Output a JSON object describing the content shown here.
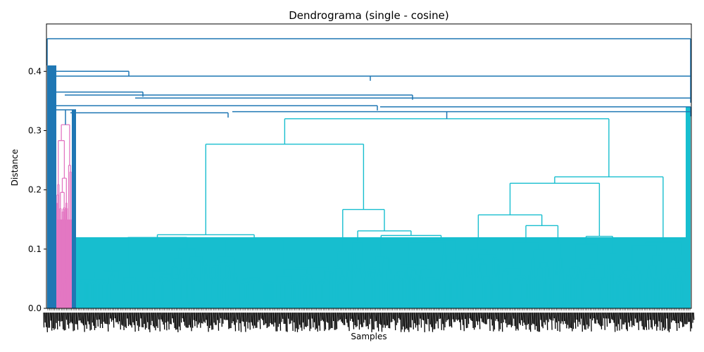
{
  "chart_data": {
    "type": "dendrogram",
    "title": "Dendrograma (single - cosine)",
    "xlabel": "Samples",
    "ylabel": "Distance",
    "ylim": [
      0,
      0.48
    ],
    "yticks": [
      "0.0",
      "0.1",
      "0.2",
      "0.3",
      "0.4"
    ],
    "grid": false,
    "legend": "none",
    "colors": {
      "above_threshold": "#1f77b4",
      "cluster_pink": "#e377c2",
      "cluster_cyan": "#17becf"
    },
    "root_height": 0.455,
    "top_merges": [
      0.455,
      0.392,
      0.355,
      0.342,
      0.332
    ],
    "clusters": [
      {
        "color": "#e377c2",
        "merge_height": 0.31,
        "min_height": 0.15,
        "share": 0.03
      },
      {
        "color": "#17becf",
        "merge_height": 0.32,
        "min_height": 0.04,
        "share": 0.95
      }
    ],
    "leaf_labels": "dense, unreadable"
  }
}
